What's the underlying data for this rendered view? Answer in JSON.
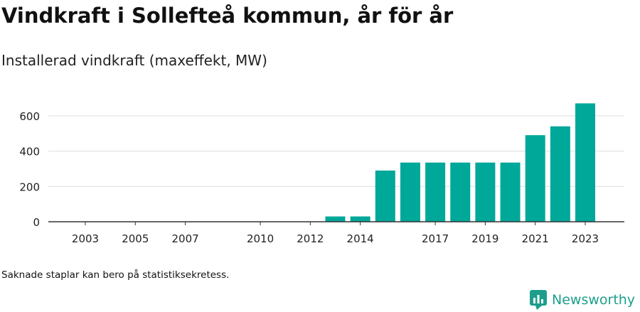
{
  "header": {
    "title": "Vindkraft i Sollefteå kommun, år för år",
    "subtitle": "Installerad vindkraft (maxeffekt, MW)"
  },
  "footer": {
    "note": "Saknade staplar kan bero på statistiksekretess.",
    "brand": "Newsworthy",
    "brand_icon": "newsworthy-logo-icon"
  },
  "colors": {
    "bar": "#00a89a",
    "grid": "#dddddd",
    "axis": "#333333",
    "brand": "#1d9e8c"
  },
  "chart_data": {
    "type": "bar",
    "title": "Vindkraft i Sollefteå kommun, år för år",
    "subtitle": "Installerad vindkraft (maxeffekt, MW)",
    "xlabel": "",
    "ylabel": "",
    "categories": [
      "2003",
      "2004",
      "2005",
      "2006",
      "2007",
      "2008",
      "2009",
      "2010",
      "2011",
      "2012",
      "2013",
      "2014",
      "2015",
      "2016",
      "2017",
      "2018",
      "2019",
      "2020",
      "2021",
      "2022",
      "2023"
    ],
    "values": [
      0,
      0,
      0,
      0,
      0,
      0,
      0,
      0,
      0,
      0,
      30,
      30,
      290,
      335,
      335,
      335,
      335,
      335,
      490,
      540,
      670
    ],
    "x_tick_labels": [
      "2003",
      "2005",
      "2007",
      "2010",
      "2012",
      "2014",
      "2017",
      "2019",
      "2021",
      "2023"
    ],
    "y_ticks": [
      "0",
      "200",
      "400",
      "600"
    ],
    "y_tick_values": [
      0,
      200,
      400,
      600
    ],
    "ylim": [
      0,
      700
    ],
    "grid": true,
    "legend": "none"
  }
}
